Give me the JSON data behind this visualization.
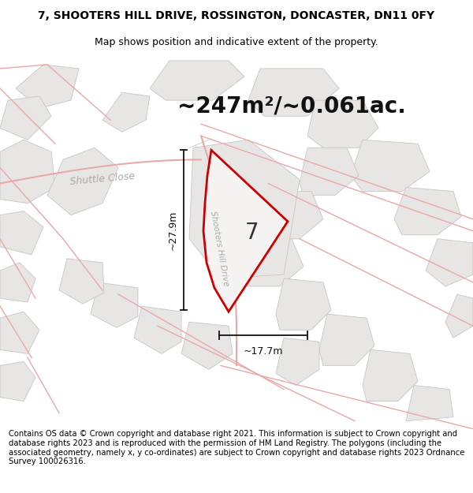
{
  "title_line1": "7, SHOOTERS HILL DRIVE, ROSSINGTON, DONCASTER, DN11 0FY",
  "title_line2": "Map shows position and indicative extent of the property.",
  "area_text": "~247m²/~0.061ac.",
  "label_number": "7",
  "dim_vertical": "~27.9m",
  "dim_horizontal": "~17.7m",
  "road_label": "Shooters Hill Drive",
  "street_label": "Shuttle Close",
  "footer_text": "Contains OS data © Crown copyright and database right 2021. This information is subject to Crown copyright and database rights 2023 and is reproduced with the permission of HM Land Registry. The polygons (including the associated geometry, namely x, y co-ordinates) are subject to Crown copyright and database rights 2023 Ordnance Survey 100026316.",
  "bg_color": "#ffffff",
  "map_bg": "#f8f8f8",
  "plot_fill": "#f0eeec",
  "plot_stroke": "#cc0000",
  "road_pink": "#e8a8a8",
  "building_fill": "#e8e6e4",
  "building_edge": "#c8c6c4",
  "road_edge": "#c0bcb8",
  "dim_color": "#111111",
  "title_fontsize": 10,
  "area_fontsize": 20,
  "footer_fontsize": 7.2
}
